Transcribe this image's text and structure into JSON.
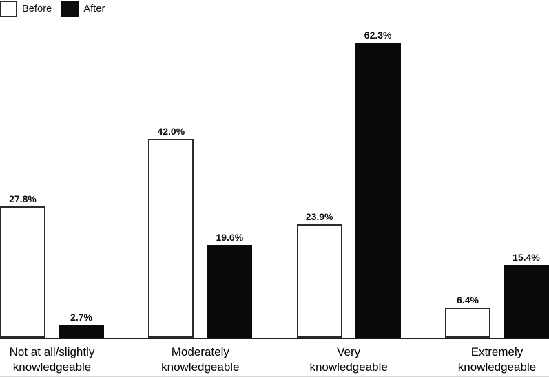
{
  "chart_data": {
    "type": "bar",
    "categories": [
      "Not at all/slightly\nknowledgeable",
      "Moderately\nknowledgeable",
      "Very\nknowledgeable",
      "Extremely\nknowledgeable"
    ],
    "series": [
      {
        "name": "Before",
        "style": "outline-white",
        "values": [
          27.8,
          42.0,
          23.9,
          6.4
        ]
      },
      {
        "name": "After",
        "style": "solid-black",
        "values": [
          2.7,
          19.6,
          62.3,
          15.4
        ]
      }
    ],
    "value_labels": [
      [
        "27.8%",
        "42.0%",
        "23.9%",
        "6.4%"
      ],
      [
        "2.7%",
        "19.6%",
        "62.3%",
        "15.4%"
      ]
    ],
    "title": "",
    "xlabel": "",
    "ylabel": "",
    "ylim": [
      0,
      70
    ],
    "grid": false,
    "legend_position": "top-left",
    "colors": {
      "before_fill": "#ffffff",
      "before_border": "#2b2b2b",
      "after_fill": "#0a0a0a",
      "axis": "#1f1f1f",
      "text": "#0d0d0d"
    }
  }
}
